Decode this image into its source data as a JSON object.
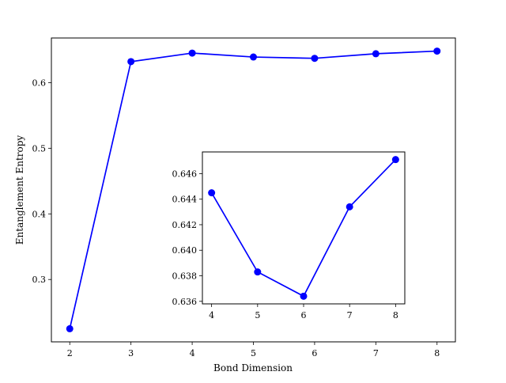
{
  "chart_data": [
    {
      "type": "line",
      "panel": "main",
      "xlabel": "Bond Dimension",
      "ylabel": "Entanglement Entropy",
      "x": [
        2,
        3,
        4,
        5,
        6,
        7,
        8
      ],
      "series": [
        {
          "values": [
            0.225,
            0.632,
            0.645,
            0.639,
            0.637,
            0.644,
            0.648
          ]
        }
      ],
      "xlim": [
        1.7,
        8.3
      ],
      "ylim": [
        0.205,
        0.668
      ],
      "x_ticks": [
        2,
        3,
        4,
        5,
        6,
        7,
        8
      ],
      "x_tick_labels": [
        "2",
        "3",
        "4",
        "5",
        "6",
        "7",
        "8"
      ],
      "y_ticks": [
        0.3,
        0.4,
        0.5,
        0.6
      ],
      "y_tick_labels": [
        "0.3",
        "0.4",
        "0.5",
        "0.6"
      ],
      "grid": false,
      "legend": false,
      "color": "#0000ff",
      "marker": "circle"
    },
    {
      "type": "line",
      "panel": "inset",
      "xlabel": "",
      "ylabel": "",
      "x": [
        4,
        5,
        6,
        7,
        8
      ],
      "series": [
        {
          "values": [
            0.6445,
            0.6383,
            0.6364,
            0.6434,
            0.6471
          ]
        }
      ],
      "xlim": [
        3.8,
        8.2
      ],
      "ylim": [
        0.6358,
        0.6477
      ],
      "x_ticks": [
        4,
        5,
        6,
        7,
        8
      ],
      "x_tick_labels": [
        "4",
        "5",
        "6",
        "7",
        "8"
      ],
      "y_ticks": [
        0.636,
        0.638,
        0.64,
        0.642,
        0.644,
        0.646
      ],
      "y_tick_labels": [
        "0.636",
        "0.638",
        "0.640",
        "0.642",
        "0.644",
        "0.646"
      ],
      "grid": false,
      "legend": false,
      "color": "#0000ff",
      "marker": "circle"
    }
  ]
}
